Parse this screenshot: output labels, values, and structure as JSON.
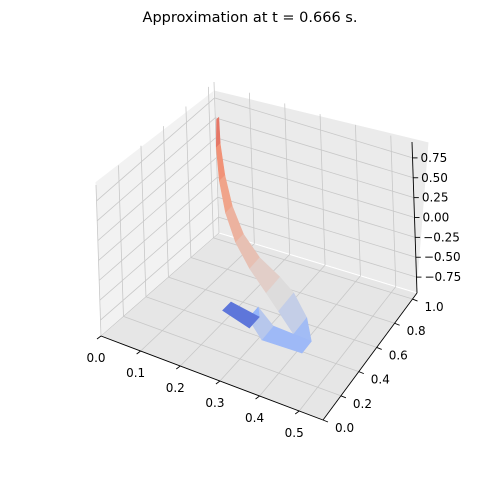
{
  "chart_data": {
    "type": "surface3d",
    "title": "Approximation at t = 0.666 s.",
    "xlabel": "",
    "ylabel": "",
    "zlabel": "",
    "x_ticks": [
      "0.0",
      "0.1",
      "0.2",
      "0.3",
      "0.4",
      "0.5"
    ],
    "y_ticks": [
      "0.0",
      "0.2",
      "0.4",
      "0.6",
      "0.8",
      "1.0"
    ],
    "z_ticks": [
      "0.75",
      "0.50",
      "0.25",
      "0.00",
      "−0.25",
      "−0.50",
      "−0.75"
    ],
    "xlim": [
      0.0,
      0.56
    ],
    "ylim": [
      0.0,
      1.05
    ],
    "zlim": [
      -0.95,
      0.95
    ],
    "grid": true,
    "colormap": "coolwarm",
    "colormap_colors": [
      "#3b4cc0",
      "#8db0fe",
      "#dddcdc",
      "#f49a7b",
      "#b40426"
    ],
    "surface_points": [
      {
        "x": 0.03,
        "y": 0.98,
        "z": 0.62
      },
      {
        "x": 0.08,
        "y": 0.82,
        "z": 0.55
      },
      {
        "x": 0.14,
        "y": 0.65,
        "z": 0.45
      },
      {
        "x": 0.2,
        "y": 0.5,
        "z": 0.35
      },
      {
        "x": 0.26,
        "y": 0.38,
        "z": 0.25
      },
      {
        "x": 0.32,
        "y": 0.3,
        "z": 0.15
      },
      {
        "x": 0.38,
        "y": 0.25,
        "z": 0.05
      },
      {
        "x": 0.42,
        "y": 0.22,
        "z": -0.05
      },
      {
        "x": 0.46,
        "y": 0.2,
        "z": -0.25
      },
      {
        "x": 0.48,
        "y": 0.18,
        "z": -0.45
      },
      {
        "x": 0.4,
        "y": 0.1,
        "z": -0.3
      },
      {
        "x": 0.36,
        "y": 0.12,
        "z": -0.15
      },
      {
        "x": 0.3,
        "y": 0.35,
        "z": -0.7
      },
      {
        "x": 0.2,
        "y": 0.45,
        "z": -0.8
      }
    ]
  }
}
